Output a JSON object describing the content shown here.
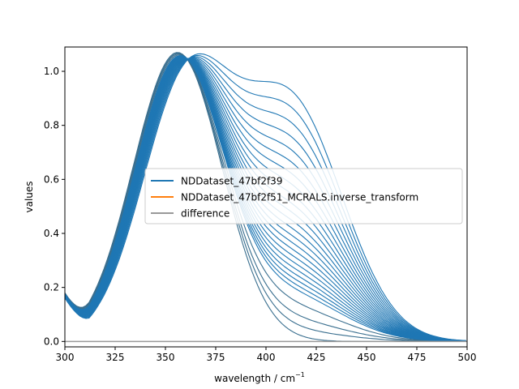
{
  "chart_data": {
    "type": "line",
    "xlabel": "wavelength / cm",
    "xlabel_superscript": "−1",
    "ylabel": "values",
    "xlim": [
      300,
      500
    ],
    "ylim": [
      -0.02,
      1.09
    ],
    "x_ticks": [
      300,
      325,
      350,
      375,
      400,
      425,
      450,
      475,
      500
    ],
    "x_tick_labels": [
      "300",
      "325",
      "350",
      "375",
      "400",
      "425",
      "450",
      "475",
      "500"
    ],
    "y_ticks": [
      0.0,
      0.2,
      0.4,
      0.6,
      0.8,
      1.0
    ],
    "y_tick_labels": [
      "0.0",
      "0.2",
      "0.4",
      "0.6",
      "0.8",
      "1.0"
    ],
    "grid": false,
    "legend_position": "center-right",
    "legend": [
      {
        "label": "NDDataset_47bf2f39",
        "color": "#1f77b4"
      },
      {
        "label": "NDDataset_47bf2f51_MCRALS.inverse_transform",
        "color": "#ff7f0e"
      },
      {
        "label": "difference",
        "color": "#999999"
      }
    ],
    "series": [
      {
        "name": "NDDataset_47bf2f39",
        "color": "#1f77b4",
        "count": 50,
        "description_points": {
          "first_spectrum": {
            "x": [
              300,
              307,
              325,
              340,
              356,
              370,
              385,
              400,
              420,
              440,
              460,
              480,
              500
            ],
            "y": [
              0.18,
              0.21,
              0.55,
              0.88,
              1.07,
              0.98,
              0.72,
              0.43,
              0.16,
              0.05,
              0.015,
              0.005,
              0.003
            ]
          },
          "last_spectrum": {
            "x": [
              300,
              307,
              325,
              340,
              355,
              366,
              375,
              390,
              400,
              420,
              440,
              460,
              480,
              500
            ],
            "y": [
              0.18,
              0.165,
              0.42,
              0.72,
              0.91,
              0.97,
              0.97,
              0.94,
              0.91,
              0.72,
              0.34,
              0.08,
              0.015,
              0.005
            ]
          }
        }
      },
      {
        "name": "NDDataset_47bf2f51_MCRALS.inverse_transform",
        "color": "#ff7f0e",
        "note_hidden": true
      },
      {
        "name": "difference",
        "color": "#999999",
        "values_approx": 0.0
      }
    ]
  }
}
